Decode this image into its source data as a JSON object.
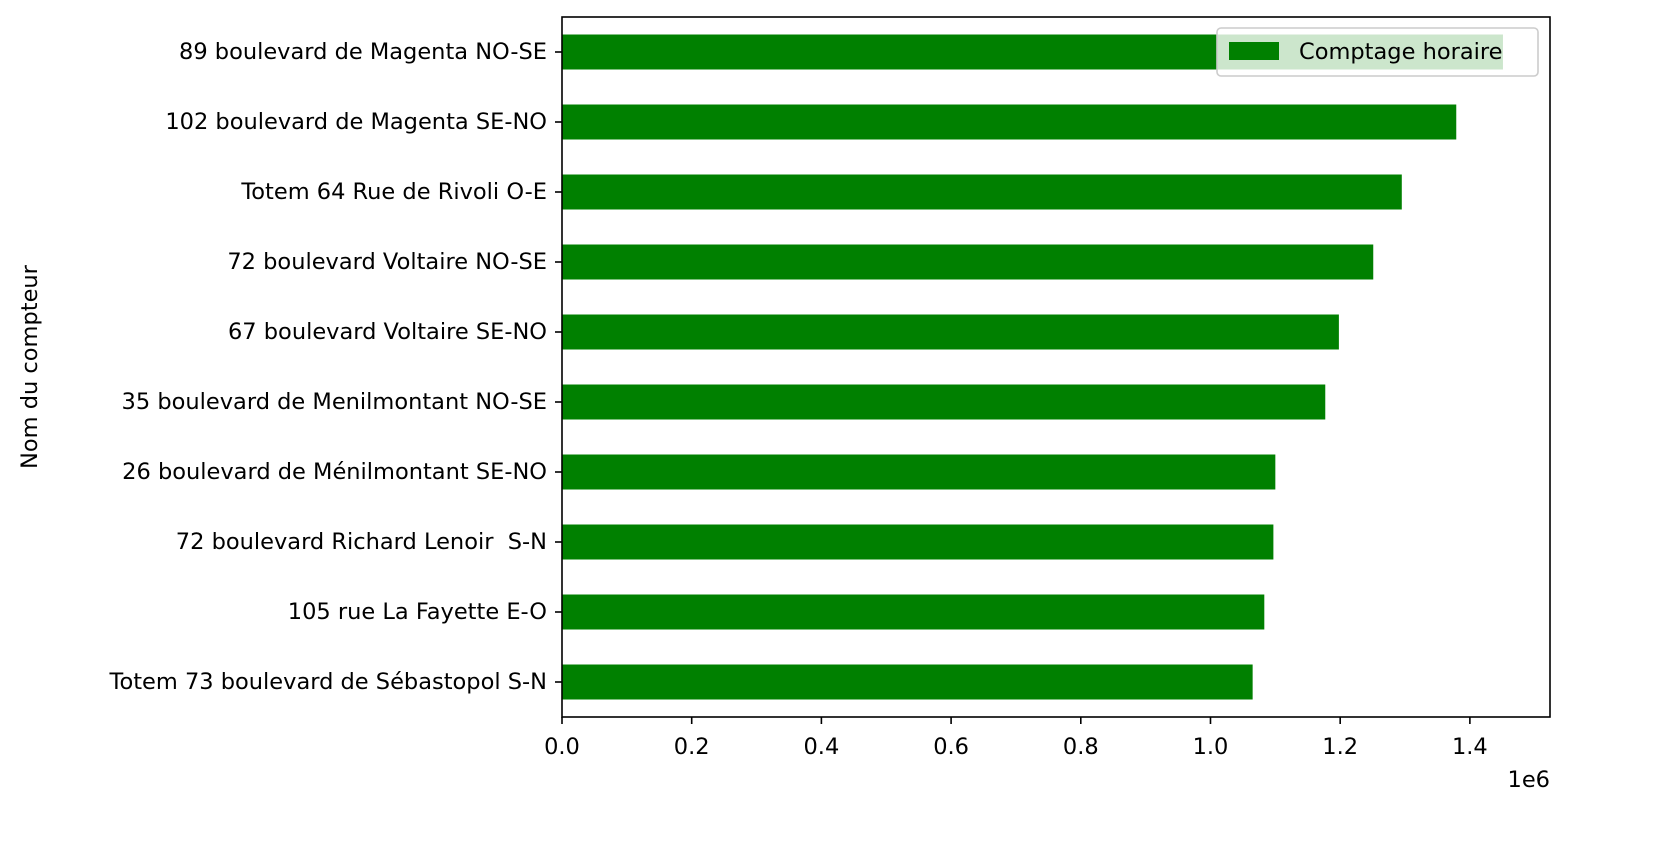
{
  "chart_data": {
    "type": "bar",
    "orientation": "horizontal",
    "categories": [
      "89 boulevard de Magenta NO-SE",
      "102 boulevard de Magenta SE-NO",
      "Totem 64 Rue de Rivoli O-E",
      "72 boulevard Voltaire NO-SE",
      "67 boulevard Voltaire SE-NO",
      "35 boulevard de Menilmontant NO-SE",
      "26 boulevard de Ménilmontant SE-NO",
      "72 boulevard Richard Lenoir  S-N",
      "105 rue La Fayette E-O",
      "Totem 73 boulevard de Sébastopol S-N"
    ],
    "series": [
      {
        "name": "Comptage horaire",
        "color": "#008000",
        "values": [
          1451000,
          1379000,
          1295000,
          1251000,
          1198000,
          1177000,
          1100000,
          1097000,
          1083000,
          1065000
        ]
      }
    ],
    "xticks": [
      "0.0",
      "0.2",
      "0.4",
      "0.6",
      "0.8",
      "1.0",
      "1.2",
      "1.4"
    ],
    "xtick_values": [
      0,
      200000,
      400000,
      600000,
      800000,
      1000000,
      1200000,
      1400000
    ],
    "x_offset_text": "1e6",
    "xlim": [
      0,
      1523550
    ],
    "ylabel": "Nom du compteur",
    "xlabel": "",
    "grid": false,
    "legend_position": "upper right"
  }
}
